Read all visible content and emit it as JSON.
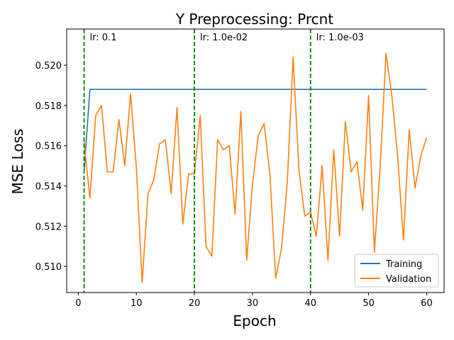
{
  "chart_data": {
    "type": "line",
    "title": "Y Preprocessing: Prcnt",
    "xlabel": "Epoch",
    "ylabel": "MSE Loss",
    "xlim": [
      -2,
      63
    ],
    "ylim": [
      0.5087,
      0.5218
    ],
    "xticks": [
      0,
      10,
      20,
      30,
      40,
      50,
      60
    ],
    "yticks": [
      0.51,
      0.512,
      0.514,
      0.516,
      0.518,
      0.52
    ],
    "ytick_labels": [
      "0.510",
      "0.512",
      "0.514",
      "0.516",
      "0.518",
      "0.520"
    ],
    "grid": false,
    "legend_position": "bottom-right",
    "lr_markers": [
      {
        "x": 1,
        "label": "lr: 0.1",
        "color": "#008000"
      },
      {
        "x": 20,
        "label": "lr: 1.0e-02",
        "color": "#008000"
      },
      {
        "x": 40,
        "label": "lr: 1.0e-03",
        "color": "#008000"
      }
    ],
    "series": [
      {
        "name": "Training",
        "color": "#1f77b4",
        "x": [
          1,
          2,
          60
        ],
        "y": [
          0.5147,
          0.5188,
          0.5188
        ]
      },
      {
        "name": "Validation",
        "color": "#ff7f0e",
        "x": [
          1,
          2,
          3,
          4,
          5,
          6,
          7,
          8,
          9,
          10,
          11,
          12,
          13,
          14,
          15,
          16,
          17,
          18,
          19,
          20,
          21,
          22,
          23,
          24,
          25,
          26,
          27,
          28,
          29,
          30,
          31,
          32,
          33,
          34,
          35,
          36,
          37,
          38,
          39,
          40,
          41,
          42,
          43,
          44,
          45,
          46,
          47,
          48,
          49,
          50,
          51,
          52,
          53,
          54,
          55,
          56,
          57,
          58,
          59,
          60
        ],
        "y": [
          0.5162,
          0.5134,
          0.5175,
          0.518,
          0.5147,
          0.5147,
          0.5173,
          0.515,
          0.5186,
          0.5149,
          0.5092,
          0.5136,
          0.5143,
          0.5161,
          0.5163,
          0.5136,
          0.5179,
          0.5121,
          0.5146,
          0.5146,
          0.5175,
          0.511,
          0.5105,
          0.5163,
          0.5158,
          0.516,
          0.5126,
          0.5177,
          0.5103,
          0.5141,
          0.5165,
          0.5171,
          0.5146,
          0.5094,
          0.5109,
          0.5142,
          0.5204,
          0.5148,
          0.5125,
          0.5127,
          0.5115,
          0.515,
          0.5103,
          0.5158,
          0.5115,
          0.5172,
          0.5147,
          0.5152,
          0.5128,
          0.5185,
          0.5107,
          0.515,
          0.5206,
          0.5185,
          0.5155,
          0.5113,
          0.5168,
          0.5139,
          0.5155,
          0.5164
        ]
      }
    ]
  }
}
